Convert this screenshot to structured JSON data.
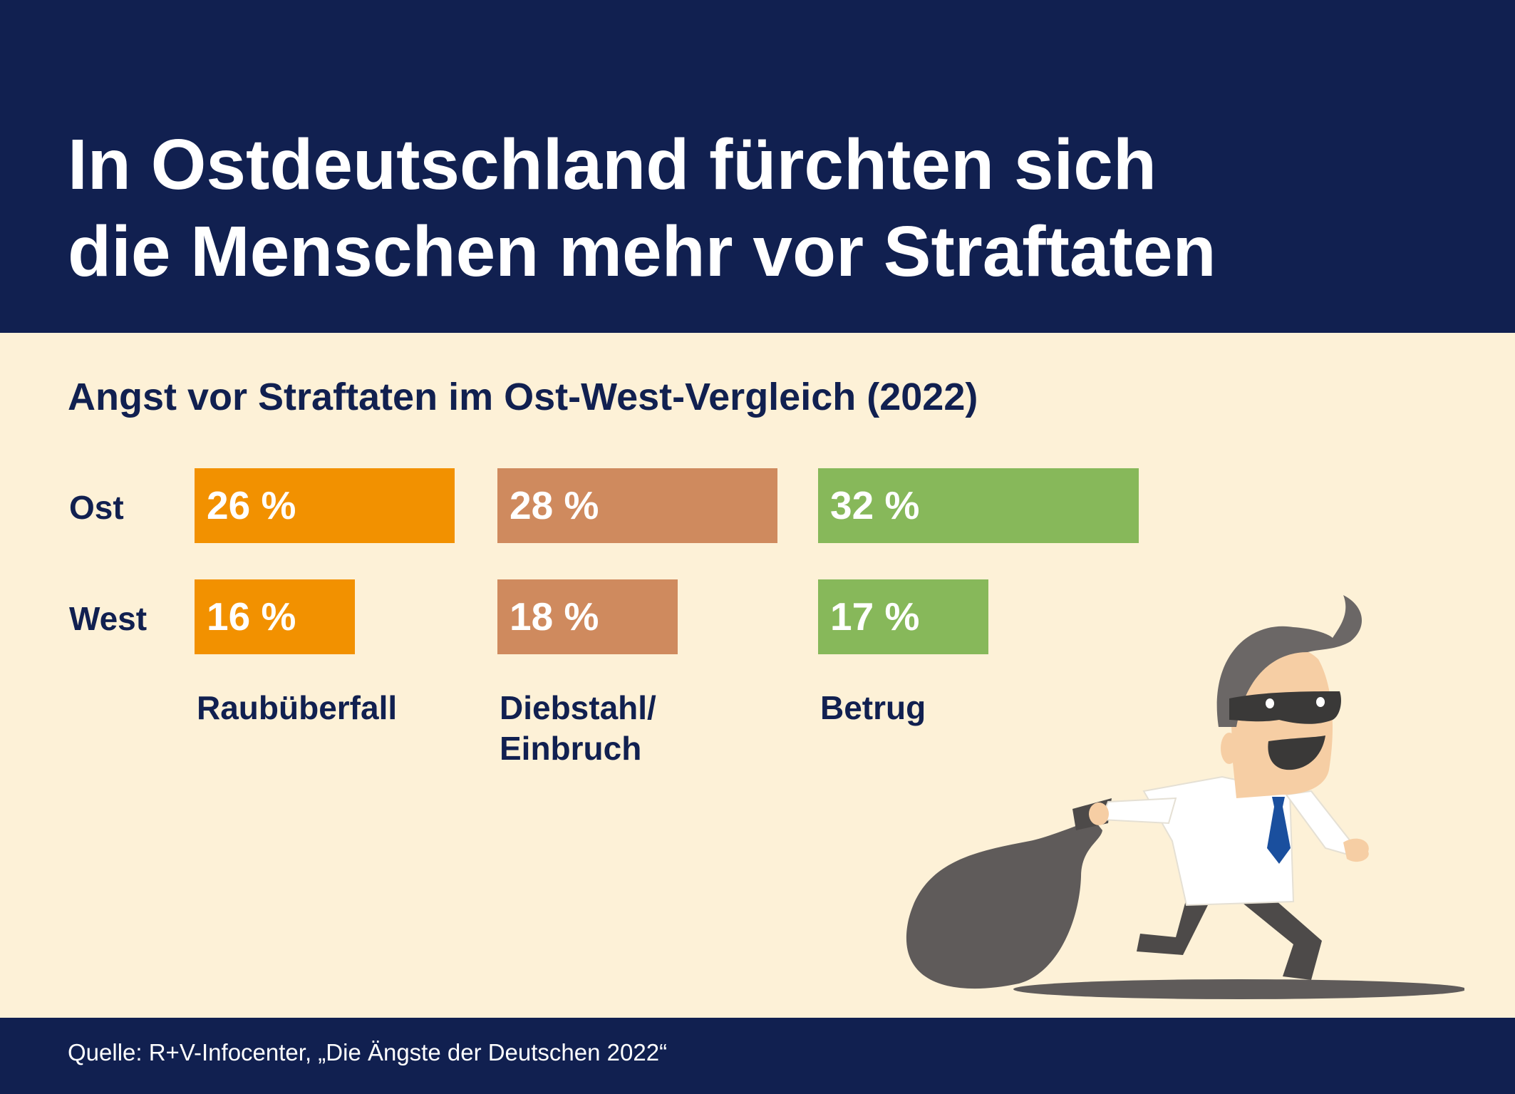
{
  "header": {
    "title_line1": "In Ostdeutschland fürchten sich",
    "title_line2": "die Menschen mehr vor Straftaten"
  },
  "chart_data": {
    "type": "bar",
    "title": "Angst vor Straftaten im Ost-West-Vergleich (2022)",
    "rows": [
      "Ost",
      "West"
    ],
    "categories": [
      {
        "label_lines": [
          "Raubüberfall"
        ],
        "color": "#f29100"
      },
      {
        "label_lines": [
          "Diebstahl/",
          "Einbruch"
        ],
        "color": "#cf8a5e"
      },
      {
        "label_lines": [
          "Betrug"
        ],
        "color": "#87b85a"
      }
    ],
    "unit": "%",
    "values": {
      "Ost": [
        26,
        28,
        32
      ],
      "West": [
        16,
        18,
        17
      ]
    },
    "value_labels": {
      "Ost": [
        "26 %",
        "28 %",
        "32 %"
      ],
      "West": [
        "16 %",
        "18 %",
        "17 %"
      ]
    }
  },
  "footer": {
    "source": "Quelle: R+V-Infocenter, „Die Ängste der Deutschen 2022“"
  },
  "colors": {
    "navy": "#112050",
    "background": "#fdf1d7"
  },
  "illustration": {
    "icon": "running-thief-with-sack-icon"
  }
}
